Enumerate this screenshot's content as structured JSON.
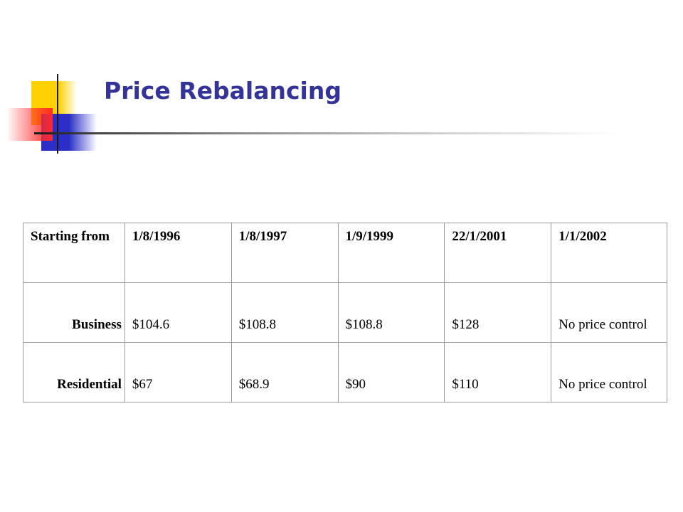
{
  "slide": {
    "title": "Price Rebalancing",
    "accent_colors": {
      "title": "#333399",
      "yellow_block": "#ffd200",
      "blue_block": "#2b2fc8",
      "red_block": "#ff2a2a"
    }
  },
  "table": {
    "header": [
      "Starting from",
      "1/8/1996",
      "1/8/1997",
      "1/9/1999",
      "22/1/2001",
      "1/1/2002"
    ],
    "rows": [
      {
        "label": "Business",
        "values": [
          "$104.6",
          "$108.8",
          "$108.8",
          "$128",
          "No price control"
        ]
      },
      {
        "label": "Residential",
        "values": [
          "$67",
          "$68.9",
          "$90",
          "$110",
          "No price control"
        ]
      }
    ]
  }
}
